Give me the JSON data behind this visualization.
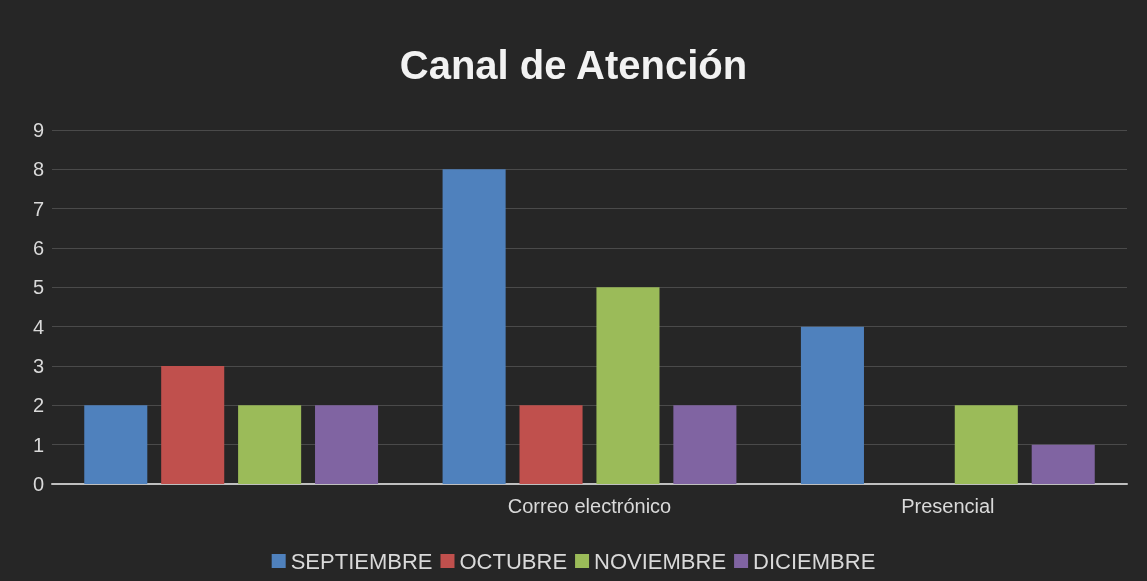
{
  "chart_data": {
    "type": "bar",
    "title": "Canal de Atención",
    "categories": [
      null,
      "Correo electrónico",
      "Presencial"
    ],
    "series": [
      {
        "name": "SEPTIEMBRE",
        "color": "#4f81bd",
        "values": [
          2,
          8,
          4
        ]
      },
      {
        "name": "OCTUBRE",
        "color": "#c0504d",
        "values": [
          3,
          2,
          0
        ]
      },
      {
        "name": "NOVIEMBRE",
        "color": "#9bbb59",
        "values": [
          2,
          5,
          2
        ]
      },
      {
        "name": "DICIEMBRE",
        "color": "#8064a2",
        "values": [
          2,
          2,
          1
        ]
      }
    ],
    "ylim": [
      0,
      9
    ],
    "yticks": [
      0,
      1,
      2,
      3,
      4,
      5,
      6,
      7,
      8,
      9
    ],
    "grid": "y",
    "legend": "bottom"
  }
}
